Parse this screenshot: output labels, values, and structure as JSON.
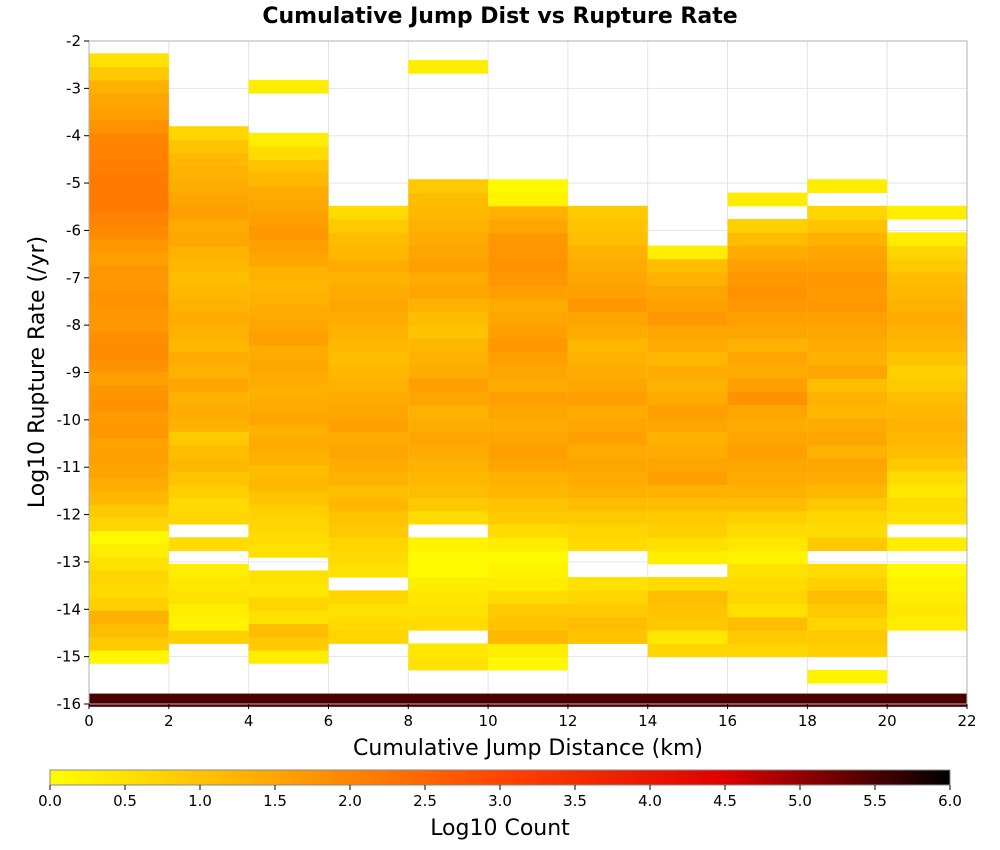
{
  "chart_data": {
    "type": "heatmap",
    "title": "Cumulative Jump Dist vs Rupture Rate",
    "xlabel": "Cumulative Jump Distance (km)",
    "ylabel": "Log10 Rupture Rate (/yr)",
    "colorbar_label": "Log10 Count",
    "xlim": [
      0,
      22
    ],
    "ylim": [
      -16,
      -2
    ],
    "clim": [
      0,
      6
    ],
    "x_ticks": [
      "0",
      "2",
      "4",
      "6",
      "8",
      "10",
      "12",
      "14",
      "16",
      "18",
      "20",
      "22"
    ],
    "y_ticks": [
      "-2",
      "-3",
      "-4",
      "-5",
      "-6",
      "-7",
      "-8",
      "-9",
      "-10",
      "-11",
      "-12",
      "-13",
      "-14",
      "-15",
      "-16"
    ],
    "colorbar_ticks": [
      "0.0",
      "0.5",
      "1.0",
      "1.5",
      "2.0",
      "2.5",
      "3.0",
      "3.5",
      "4.0",
      "4.5",
      "5.0",
      "5.5",
      "6.0"
    ],
    "colormap": [
      "#ffff00",
      "#ffa500",
      "#ff4500",
      "#dd0000",
      "#000000"
    ],
    "grid": true,
    "x_bin_width": 2,
    "y_bin_height": 0.28,
    "x_bins": [
      1,
      3,
      5,
      7,
      9,
      11,
      13,
      15,
      17,
      19,
      21
    ],
    "y_bin_min": -15.96,
    "columns": [
      {
        "x_center": 1,
        "first_bin_center": -15.0,
        "values": [
          0.15,
          0.9,
          1.1,
          1.3,
          0.8,
          0.6,
          0.7,
          0.5,
          0.3,
          0.1,
          0.7,
          0.9,
          1.2,
          1.35,
          1.5,
          1.6,
          1.55,
          1.7,
          1.65,
          1.8,
          1.75,
          1.6,
          1.8,
          1.9,
          1.85,
          1.7,
          1.75,
          1.8,
          1.7,
          1.75,
          1.6,
          1.7,
          1.9,
          2.05,
          2.15,
          2.2,
          2.15,
          2.1,
          2.05,
          2.0,
          1.8,
          1.6,
          1.5,
          1.3,
          0.9,
          0.5
        ]
      },
      {
        "x_center": 3,
        "first_bin_center": -14.58,
        "values": [
          0.8,
          0.2,
          0.3,
          0.5,
          0.4,
          0.3,
          null,
          0.6,
          null,
          0.7,
          0.6,
          0.8,
          1.0,
          1.2,
          1.1,
          0.9,
          1.3,
          1.4,
          1.3,
          1.5,
          1.3,
          1.4,
          1.2,
          1.3,
          1.4,
          1.3,
          1.2,
          1.1,
          1.2,
          1.3,
          1.5,
          1.4,
          1.6,
          1.5,
          1.4,
          1.3,
          1.2,
          1.0,
          0.7
        ]
      },
      {
        "x_center": 5,
        "first_bin_center": -15.0,
        "values": [
          0.3,
          0.9,
          1.1,
          0.5,
          0.7,
          0.4,
          0.5,
          null,
          0.5,
          0.6,
          0.7,
          0.8,
          1.0,
          1.2,
          1.1,
          1.3,
          1.4,
          1.3,
          1.5,
          1.4,
          1.3,
          1.4,
          1.5,
          1.4,
          1.6,
          1.5,
          1.4,
          1.3,
          1.2,
          1.3,
          1.5,
          1.6,
          1.7,
          1.6,
          1.5,
          1.4,
          1.2,
          1.0,
          0.6,
          0.3,
          null,
          null,
          null,
          0.3
        ]
      },
      {
        "x_center": 7,
        "first_bin_center": -14.58,
        "values": [
          0.7,
          0.6,
          0.5,
          0.7,
          null,
          0.5,
          0.6,
          0.7,
          0.9,
          1.0,
          1.2,
          1.1,
          1.3,
          1.4,
          1.5,
          1.4,
          1.6,
          1.5,
          1.4,
          1.3,
          1.2,
          1.1,
          1.2,
          1.3,
          1.4,
          1.5,
          1.4,
          1.3,
          1.4,
          1.2,
          1.1,
          0.9,
          0.6
        ]
      },
      {
        "x_center": 9,
        "first_bin_center": -15.14,
        "values": [
          0.5,
          0.4,
          null,
          0.6,
          0.5,
          0.4,
          0.3,
          0.1,
          0.1,
          0.2,
          null,
          0.6,
          0.9,
          1.1,
          1.2,
          1.3,
          1.4,
          1.5,
          1.4,
          1.3,
          1.5,
          1.6,
          1.4,
          1.3,
          1.2,
          1.0,
          1.1,
          1.3,
          1.5,
          1.4,
          1.6,
          1.5,
          1.4,
          1.3,
          1.2,
          1.1,
          0.9,
          null,
          null,
          null,
          null,
          null,
          null,
          null,
          null,
          0.3
        ]
      },
      {
        "x_center": 11,
        "first_bin_center": -15.14,
        "values": [
          0.1,
          0.3,
          1.2,
          1.0,
          0.9,
          0.6,
          0.3,
          0.2,
          0.1,
          0.3,
          0.6,
          0.9,
          1.0,
          1.2,
          1.3,
          1.5,
          1.6,
          1.5,
          1.4,
          1.5,
          1.6,
          1.4,
          1.5,
          1.6,
          1.7,
          1.6,
          1.5,
          1.4,
          1.6,
          1.7,
          1.8,
          1.75,
          1.7,
          1.5,
          1.3,
          0.2,
          0.1
        ]
      },
      {
        "x_center": 13,
        "first_bin_center": -14.58,
        "values": [
          1.0,
          1.1,
          0.9,
          0.7,
          0.5,
          null,
          null,
          0.6,
          0.7,
          0.9,
          1.1,
          1.3,
          1.4,
          1.5,
          1.4,
          1.6,
          1.5,
          1.4,
          1.6,
          1.5,
          1.4,
          1.3,
          1.2,
          1.4,
          1.5,
          1.7,
          1.6,
          1.5,
          1.4,
          1.3,
          1.1,
          1.0,
          0.9
        ]
      },
      {
        "x_center": 15,
        "first_bin_center": -14.86,
        "values": [
          0.7,
          0.4,
          0.9,
          1.0,
          1.1,
          0.6,
          null,
          0.3,
          0.5,
          0.8,
          0.9,
          1.1,
          1.3,
          1.6,
          1.5,
          1.4,
          1.3,
          1.5,
          1.6,
          1.4,
          1.3,
          1.4,
          1.2,
          1.4,
          1.5,
          1.7,
          1.6,
          1.5,
          1.3,
          1.1,
          0.3
        ]
      },
      {
        "x_center": 17,
        "first_bin_center": -14.86,
        "values": [
          0.7,
          0.9,
          1.1,
          0.5,
          0.7,
          0.6,
          0.5,
          0.2,
          0.4,
          0.6,
          0.8,
          1.1,
          1.3,
          1.4,
          1.5,
          1.6,
          1.5,
          1.4,
          1.5,
          1.8,
          1.6,
          1.4,
          1.5,
          1.3,
          1.5,
          1.6,
          1.7,
          1.8,
          1.7,
          1.6,
          1.4,
          1.1,
          0.8,
          null,
          0.3
        ]
      },
      {
        "x_center": 19,
        "first_bin_center": -15.42,
        "values": [
          0.2,
          null,
          0.8,
          0.9,
          0.7,
          0.9,
          1.1,
          0.8,
          0.6,
          null,
          0.9,
          0.6,
          0.7,
          0.9,
          1.2,
          1.4,
          1.5,
          1.3,
          1.5,
          1.4,
          1.2,
          1.3,
          1.1,
          1.5,
          1.3,
          1.4,
          1.5,
          1.6,
          1.7,
          1.65,
          1.7,
          1.6,
          1.5,
          1.3,
          1.0,
          0.7,
          null,
          0.3
        ]
      },
      {
        "x_center": 21,
        "first_bin_center": -14.3,
        "values": [
          0.3,
          0.4,
          0.3,
          0.2,
          0.1,
          null,
          0.3,
          null,
          0.5,
          0.6,
          0.4,
          0.6,
          0.9,
          1.1,
          1.2,
          1.3,
          1.2,
          1.1,
          0.9,
          0.8,
          1.0,
          1.2,
          1.3,
          1.4,
          1.3,
          1.2,
          1.1,
          0.9,
          0.7,
          0.3,
          null,
          0.3
        ]
      }
    ],
    "bottom_row": {
      "y": -15.92,
      "value": 5.5,
      "x_range": [
        0,
        22
      ]
    }
  }
}
